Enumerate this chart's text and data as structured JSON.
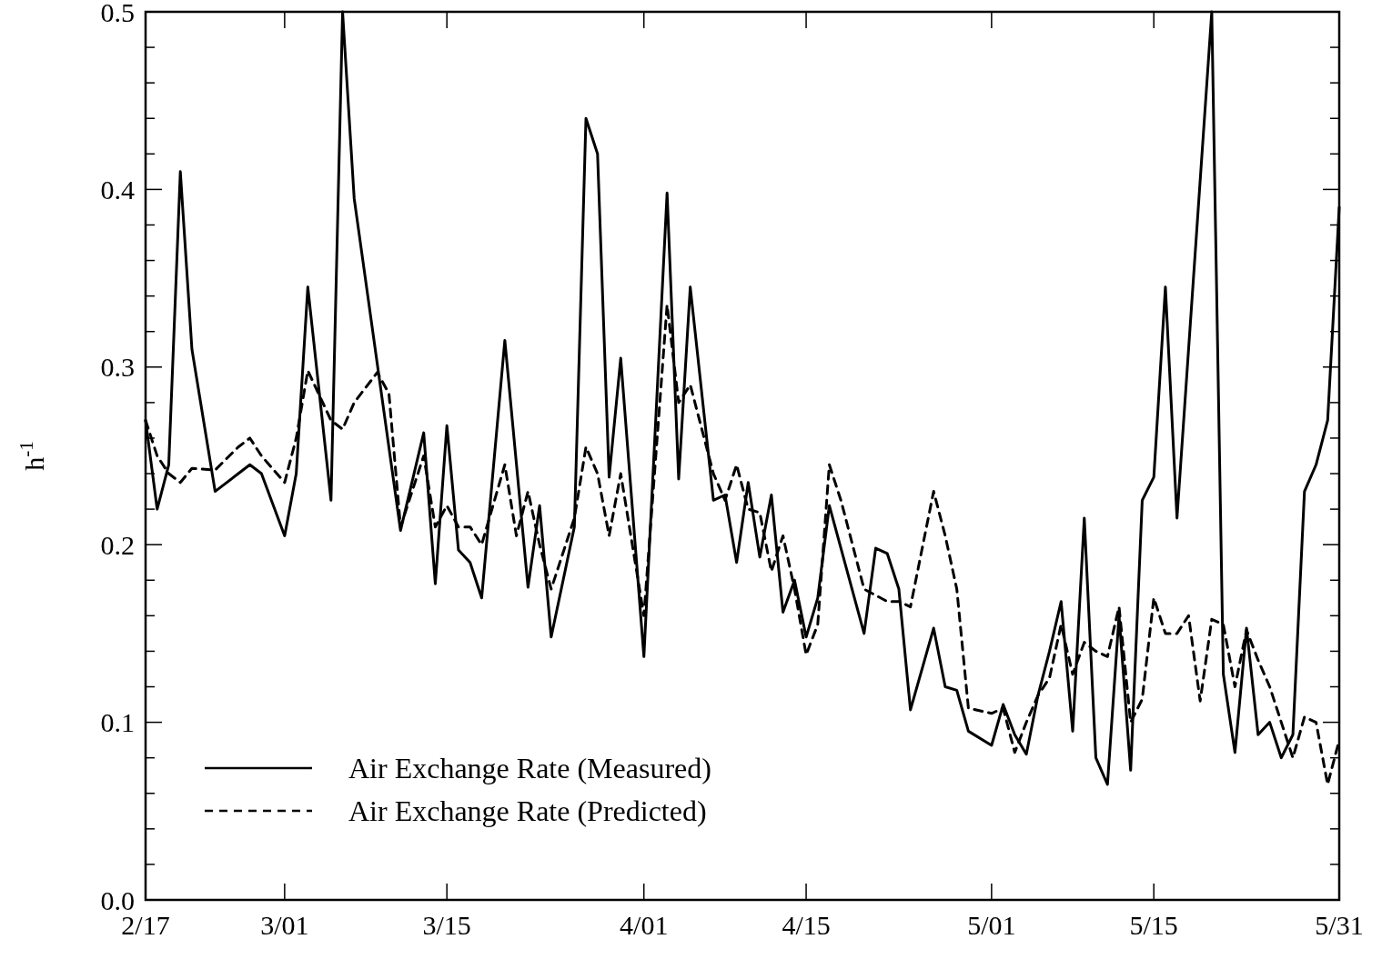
{
  "chart_data": {
    "type": "line",
    "ylabel": "h$^{-1}$",
    "xlim": [
      "--02-17",
      "--05-31"
    ],
    "xticks": [
      {
        "value": "--02-17",
        "label": "2/17"
      },
      {
        "value": "--03-01",
        "label": "3/01"
      },
      {
        "value": "--03-15",
        "label": "3/15"
      },
      {
        "value": "--04-01",
        "label": "4/01"
      },
      {
        "value": "--04-15",
        "label": "4/15"
      },
      {
        "value": "--05-01",
        "label": "5/01"
      },
      {
        "value": "--05-15",
        "label": "5/15"
      },
      {
        "value": "--05-31",
        "label": "5/31"
      }
    ],
    "ylim": [
      0,
      0.5
    ],
    "yticks": [
      {
        "value": 0,
        "label": "0.0"
      },
      {
        "value": 0.02,
        "label": null
      },
      {
        "value": 0.04,
        "label": null
      },
      {
        "value": 0.06,
        "label": null
      },
      {
        "value": 0.08,
        "label": null
      },
      {
        "value": 0.1,
        "label": "0.1"
      },
      {
        "value": 0.12,
        "label": null
      },
      {
        "value": 0.14,
        "label": null
      },
      {
        "value": 0.16,
        "label": null
      },
      {
        "value": 0.18,
        "label": null
      },
      {
        "value": 0.2,
        "label": "0.2"
      },
      {
        "value": 0.22,
        "label": null
      },
      {
        "value": 0.24,
        "label": null
      },
      {
        "value": 0.26,
        "label": null
      },
      {
        "value": 0.28,
        "label": null
      },
      {
        "value": 0.3,
        "label": "0.3"
      },
      {
        "value": 0.32,
        "label": null
      },
      {
        "value": 0.34,
        "label": null
      },
      {
        "value": 0.36,
        "label": null
      },
      {
        "value": 0.38,
        "label": null
      },
      {
        "value": 0.4,
        "label": "0.4"
      },
      {
        "value": 0.42,
        "label": null
      },
      {
        "value": 0.44,
        "label": null
      },
      {
        "value": 0.46,
        "label": null
      },
      {
        "value": 0.48,
        "label": null
      },
      {
        "value": 0.5,
        "label": "0.5"
      }
    ],
    "grid": false,
    "legend": "bottom left",
    "marker": "none",
    "series": [
      {
        "name": "Air Exchange Rate (Measured)",
        "color": "#000000",
        "line_style": "solid",
        "x": [
          "--02-17",
          "--02-18",
          "--02-19",
          "--02-20",
          "--02-21",
          "--02-23",
          "--02-25",
          "--02-26",
          "--02-27",
          "--03-01",
          "--03-02",
          "--03-03",
          "--03-05",
          "--03-06",
          "--03-07",
          "--03-11",
          "--03-13",
          "--03-14",
          "--03-15",
          "--03-16",
          "--03-17",
          "--03-18",
          "--03-20",
          "--03-22",
          "--03-23",
          "--03-24",
          "--03-26",
          "--03-27",
          "--03-28",
          "--03-29",
          "--03-30",
          "--04-01",
          "--04-03",
          "--04-04",
          "--04-05",
          "--04-07",
          "--04-08",
          "--04-09",
          "--04-10",
          "--04-11",
          "--04-12",
          "--04-13",
          "--04-14",
          "--04-15",
          "--04-16",
          "--04-17",
          "--04-20",
          "--04-21",
          "--04-22",
          "--04-23",
          "--04-24",
          "--04-26",
          "--04-27",
          "--04-28",
          "--04-29",
          "--05-01",
          "--05-02",
          "--05-03",
          "--05-04",
          "--05-05",
          "--05-06",
          "--05-07",
          "--05-08",
          "--05-09",
          "--05-10",
          "--05-11",
          "--05-12",
          "--05-13",
          "--05-14",
          "--05-15",
          "--05-16",
          "--05-17",
          "--05-20",
          "--05-21",
          "--05-22",
          "--05-23",
          "--05-24",
          "--05-25",
          "--05-26",
          "--05-27",
          "--05-28",
          "--05-29",
          "--05-30",
          "--05-31"
        ],
        "values": [
          0.27,
          0.22,
          0.245,
          0.41,
          0.31,
          0.23,
          0.24,
          0.245,
          0.24,
          0.205,
          0.24,
          0.345,
          0.225,
          0.5,
          0.395,
          0.208,
          0.263,
          0.178,
          0.267,
          0.197,
          0.19,
          0.17,
          0.315,
          0.176,
          0.222,
          0.148,
          0.21,
          0.44,
          0.42,
          0.238,
          0.305,
          0.137,
          0.398,
          0.237,
          0.345,
          0.225,
          0.228,
          0.19,
          0.235,
          0.193,
          0.228,
          0.162,
          0.18,
          0.148,
          0.17,
          0.222,
          0.15,
          0.198,
          0.195,
          0.175,
          0.107,
          0.153,
          0.12,
          0.118,
          0.095,
          0.087,
          0.11,
          0.093,
          0.082,
          0.115,
          0.14,
          0.168,
          0.095,
          0.215,
          0.08,
          0.065,
          0.16,
          0.073,
          0.225,
          0.238,
          0.345,
          0.215,
          0.5,
          0.127,
          0.083,
          0.153,
          0.093,
          0.1,
          0.08,
          0.093,
          0.23,
          0.245,
          0.27,
          0.39
        ]
      },
      {
        "name": "Air Exchange Rate (Predicted)",
        "color": "#000000",
        "line_style": "dashed",
        "x": [
          "--02-17",
          "--02-18",
          "--02-19",
          "--02-20",
          "--02-21",
          "--02-23",
          "--02-25",
          "--02-26",
          "--02-27",
          "--03-01",
          "--03-02",
          "--03-03",
          "--03-05",
          "--03-06",
          "--03-07",
          "--03-09",
          "--03-10",
          "--03-11",
          "--03-13",
          "--03-14",
          "--03-15",
          "--03-16",
          "--03-17",
          "--03-18",
          "--03-20",
          "--03-21",
          "--03-22",
          "--03-23",
          "--03-24",
          "--03-26",
          "--03-27",
          "--03-28",
          "--03-29",
          "--03-30",
          "--04-01",
          "--04-03",
          "--04-04",
          "--04-05",
          "--04-07",
          "--04-08",
          "--04-09",
          "--04-10",
          "--04-11",
          "--04-12",
          "--04-13",
          "--04-14",
          "--04-15",
          "--04-16",
          "--04-17",
          "--04-18",
          "--04-20",
          "--04-22",
          "--04-23",
          "--04-24",
          "--04-26",
          "--04-27",
          "--04-28",
          "--04-29",
          "--05-01",
          "--05-02",
          "--05-03",
          "--05-04",
          "--05-05",
          "--05-06",
          "--05-07",
          "--05-08",
          "--05-09",
          "--05-10",
          "--05-11",
          "--05-12",
          "--05-13",
          "--05-14",
          "--05-15",
          "--05-16",
          "--05-17",
          "--05-18",
          "--05-19",
          "--05-20",
          "--05-21",
          "--05-22",
          "--05-23",
          "--05-24",
          "--05-25",
          "--05-26",
          "--05-27",
          "--05-28",
          "--05-29",
          "--05-30",
          "--05-31"
        ],
        "values": [
          0.27,
          0.25,
          0.24,
          0.235,
          0.243,
          0.242,
          0.255,
          0.26,
          0.25,
          0.235,
          0.26,
          0.298,
          0.27,
          0.265,
          0.28,
          0.297,
          0.285,
          0.21,
          0.25,
          0.21,
          0.222,
          0.21,
          0.21,
          0.2,
          0.245,
          0.205,
          0.23,
          0.2,
          0.175,
          0.215,
          0.255,
          0.24,
          0.205,
          0.24,
          0.16,
          0.335,
          0.28,
          0.29,
          0.24,
          0.225,
          0.245,
          0.22,
          0.218,
          0.185,
          0.205,
          0.175,
          0.138,
          0.155,
          0.245,
          0.225,
          0.175,
          0.168,
          0.168,
          0.165,
          0.23,
          0.205,
          0.175,
          0.108,
          0.105,
          0.108,
          0.083,
          0.1,
          0.115,
          0.125,
          0.155,
          0.127,
          0.145,
          0.14,
          0.137,
          0.165,
          0.1,
          0.113,
          0.17,
          0.15,
          0.15,
          0.16,
          0.112,
          0.158,
          0.155,
          0.12,
          0.152,
          0.135,
          0.12,
          0.1,
          0.08,
          0.103,
          0.1,
          0.065,
          0.09
        ]
      }
    ]
  }
}
